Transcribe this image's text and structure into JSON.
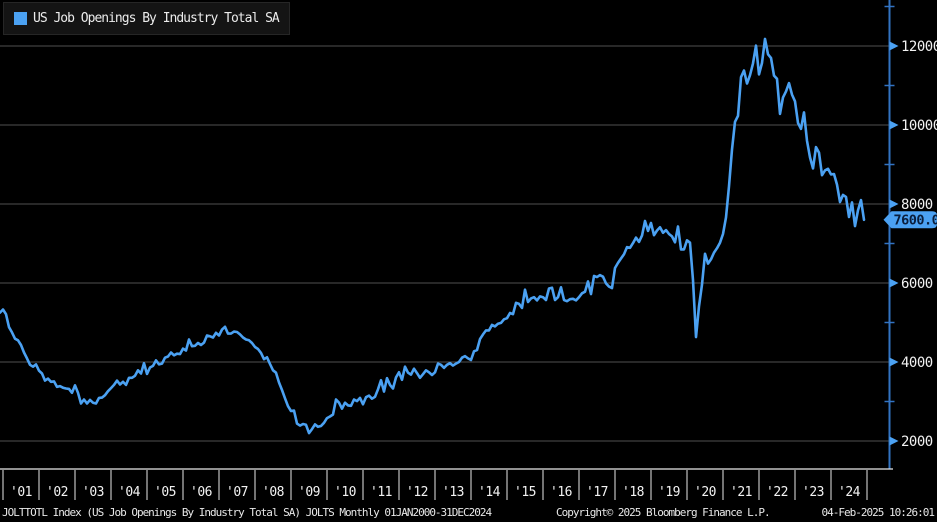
{
  "legend": {
    "label": "US Job Openings By Industry Total SA"
  },
  "footer": {
    "left": "JOLTTOTL Index (US Job Openings By Industry Total SA) JOLTS  Monthly 01JAN2000-31DEC2024",
    "copyright": "Copyright© 2025 Bloomberg Finance L.P.",
    "timestamp": "04-Feb-2025 10:26:01"
  },
  "last_value_tag": "7600.0",
  "colors": {
    "background": "#000000",
    "line": "#4ba1f2",
    "axis": "#3273c2",
    "grid": "#515151",
    "tag_bg": "#4ba1f2",
    "tag_text": "#0a1e3c",
    "tick_text": "#f2f2f2",
    "x_band": "#e8e8e8"
  },
  "y_axis": {
    "major_ticks": [
      2000,
      4000,
      6000,
      8000,
      10000,
      12000
    ],
    "minor_ticks": [
      3000,
      5000,
      7000,
      9000,
      11000,
      13000
    ]
  },
  "x_axis": {
    "year_labels": [
      "'01",
      "'02",
      "'03",
      "'04",
      "'05",
      "'06",
      "'07",
      "'08",
      "'09",
      "'10",
      "'11",
      "'12",
      "'13",
      "'14",
      "'15",
      "'16",
      "'17",
      "'18",
      "'19",
      "'20",
      "'21",
      "'22",
      "'23",
      "'24"
    ]
  },
  "chart_data": {
    "type": "line",
    "title": "US Job Openings By Industry Total SA",
    "ticker": "JOLTTOTL Index",
    "frequency": "monthly",
    "x_start": "Dec 2000",
    "x_end": "Dec 2024",
    "unit": "thousands",
    "ylim": [
      1500,
      13000
    ],
    "last_value": 7600.0,
    "legend_position": "top-left",
    "grid": "horizontal",
    "values": [
      5250,
      5330,
      5210,
      4880,
      4750,
      4590,
      4550,
      4430,
      4240,
      4090,
      3930,
      3880,
      3940,
      3780,
      3710,
      3530,
      3580,
      3500,
      3510,
      3370,
      3390,
      3350,
      3330,
      3320,
      3220,
      3410,
      3220,
      2950,
      3050,
      2950,
      3040,
      2970,
      2950,
      3090,
      3100,
      3160,
      3260,
      3340,
      3420,
      3530,
      3430,
      3500,
      3420,
      3600,
      3600,
      3650,
      3790,
      3710,
      3970,
      3700,
      3860,
      3900,
      4040,
      3940,
      3960,
      4110,
      4140,
      4240,
      4170,
      4210,
      4200,
      4340,
      4290,
      4570,
      4400,
      4410,
      4480,
      4430,
      4490,
      4670,
      4650,
      4620,
      4740,
      4670,
      4820,
      4890,
      4720,
      4720,
      4770,
      4760,
      4700,
      4620,
      4570,
      4550,
      4480,
      4380,
      4330,
      4230,
      4070,
      4120,
      3950,
      3790,
      3730,
      3480,
      3290,
      3080,
      2880,
      2760,
      2770,
      2440,
      2390,
      2430,
      2410,
      2200,
      2300,
      2420,
      2360,
      2380,
      2460,
      2580,
      2620,
      2670,
      3050,
      2970,
      2820,
      2970,
      2900,
      2890,
      3050,
      3010,
      3090,
      2930,
      3110,
      3150,
      3070,
      3120,
      3310,
      3540,
      3250,
      3590,
      3420,
      3330,
      3610,
      3740,
      3550,
      3880,
      3730,
      3680,
      3830,
      3720,
      3600,
      3690,
      3790,
      3740,
      3670,
      3740,
      3960,
      3930,
      3850,
      3930,
      3970,
      3910,
      3960,
      4000,
      4110,
      4150,
      4090,
      4050,
      4270,
      4300,
      4580,
      4700,
      4800,
      4800,
      4940,
      4900,
      4970,
      4990,
      5080,
      5110,
      5240,
      5210,
      5500,
      5470,
      5370,
      5830,
      5520,
      5610,
      5640,
      5560,
      5660,
      5640,
      5570,
      5860,
      5880,
      5570,
      5640,
      5890,
      5570,
      5540,
      5590,
      5600,
      5560,
      5640,
      5740,
      5780,
      6040,
      5720,
      6180,
      6150,
      6200,
      6160,
      5990,
      5910,
      5870,
      6380,
      6510,
      6620,
      6730,
      6910,
      6890,
      7010,
      7150,
      7040,
      7200,
      7570,
      7320,
      7520,
      7210,
      7330,
      7410,
      7270,
      7340,
      7240,
      7180,
      7030,
      7430,
      6850,
      6850,
      7080,
      7020,
      6070,
      4630,
      5410,
      5960,
      6740,
      6490,
      6600,
      6770,
      6880,
      7020,
      7240,
      7660,
      8450,
      9380,
      10080,
      10230,
      11210,
      11380,
      11050,
      11260,
      11560,
      12010,
      11280,
      11570,
      12180,
      11790,
      11700,
      11250,
      11170,
      10280,
      10700,
      10850,
      11060,
      10770,
      10600,
      10050,
      9900,
      10320,
      9600,
      9180,
      8900,
      9440,
      9300,
      8730,
      8850,
      8890,
      8750,
      8760,
      8490,
      8050,
      8230,
      8180,
      7670,
      8040,
      7440,
      7840,
      8100,
      7600
    ]
  }
}
